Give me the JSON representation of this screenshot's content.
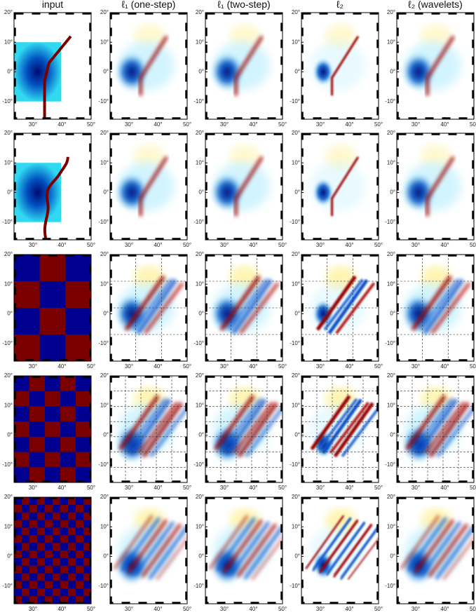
{
  "columns": [
    "input",
    "ℓ₁ (one-step)",
    "ℓ₁ (two-step)",
    "ℓ₂",
    "ℓ₂ (wavelets)"
  ],
  "axes": {
    "xlim": [
      23.5,
      50
    ],
    "ylim": [
      -16,
      20
    ],
    "xticks": [
      {
        "value": 30,
        "label": "30°"
      },
      {
        "value": 40,
        "label": "40°"
      },
      {
        "value": 50,
        "label": "50°"
      }
    ],
    "yticks": [
      {
        "value": 20,
        "label": "20°"
      },
      {
        "value": 10,
        "label": "10°"
      },
      {
        "value": 0,
        "label": "0°"
      },
      {
        "value": -10,
        "label": "-10°"
      }
    ]
  }
}
